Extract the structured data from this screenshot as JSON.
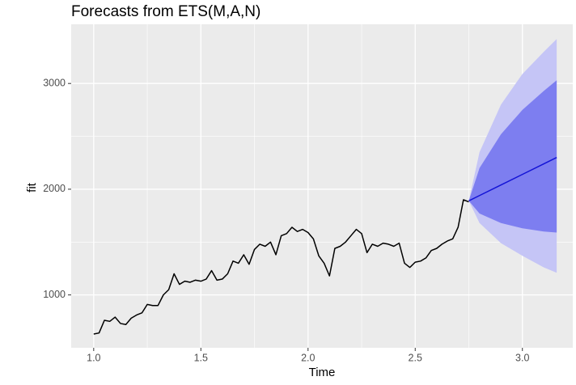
{
  "chart_data": {
    "type": "line",
    "title": "Forecasts from ETS(M,A,N)",
    "x_label": "Time",
    "y_label": "fit",
    "xlim": [
      0.895,
      3.235
    ],
    "ylim": [
      500,
      3560
    ],
    "xticks": [
      {
        "value": 1,
        "label": "1.0"
      },
      1.5,
      {
        "value": 2,
        "label": "2.0"
      },
      2.5,
      {
        "value": 3,
        "label": "3.0"
      }
    ],
    "yticks": [
      1000,
      2000,
      3000
    ],
    "grid": true,
    "minor_grid": true,
    "bands": [
      {
        "color": "#c5c5f6",
        "x": [
          2.75,
          2.8,
          2.9,
          3.0,
          3.1,
          3.16
        ],
        "lower": [
          1890,
          1680,
          1490,
          1370,
          1260,
          1210
        ],
        "upper": [
          1890,
          2350,
          2800,
          3090,
          3300,
          3420
        ]
      },
      {
        "color": "#7d7ef0",
        "x": [
          2.75,
          2.8,
          2.9,
          3.0,
          3.1,
          3.16
        ],
        "lower": [
          1890,
          1770,
          1680,
          1630,
          1600,
          1590
        ],
        "upper": [
          1890,
          2200,
          2520,
          2750,
          2930,
          3030
        ]
      }
    ],
    "series": [
      {
        "color": "#000000",
        "x": [
          1.0,
          1.025,
          1.05,
          1.075,
          1.1,
          1.125,
          1.15,
          1.175,
          1.2,
          1.225,
          1.25,
          1.275,
          1.3,
          1.325,
          1.35,
          1.375,
          1.4,
          1.425,
          1.45,
          1.475,
          1.5,
          1.525,
          1.55,
          1.575,
          1.6,
          1.625,
          1.65,
          1.675,
          1.7,
          1.725,
          1.75,
          1.775,
          1.8,
          1.825,
          1.85,
          1.875,
          1.9,
          1.925,
          1.95,
          1.975,
          2.0,
          2.025,
          2.05,
          2.075,
          2.1,
          2.125,
          2.15,
          2.175,
          2.2,
          2.225,
          2.25,
          2.275,
          2.3,
          2.325,
          2.35,
          2.375,
          2.4,
          2.425,
          2.45,
          2.475,
          2.5,
          2.525,
          2.55,
          2.575,
          2.6,
          2.625,
          2.65,
          2.675,
          2.7,
          2.725,
          2.75
        ],
        "values": [
          630,
          640,
          760,
          750,
          790,
          730,
          720,
          780,
          810,
          830,
          910,
          900,
          900,
          1000,
          1050,
          1200,
          1100,
          1130,
          1120,
          1140,
          1130,
          1150,
          1230,
          1140,
          1150,
          1200,
          1320,
          1300,
          1380,
          1290,
          1430,
          1480,
          1460,
          1500,
          1380,
          1560,
          1580,
          1640,
          1600,
          1620,
          1590,
          1530,
          1370,
          1300,
          1180,
          1440,
          1460,
          1500,
          1560,
          1620,
          1580,
          1400,
          1480,
          1460,
          1490,
          1480,
          1460,
          1490,
          1300,
          1260,
          1310,
          1320,
          1350,
          1420,
          1440,
          1480,
          1510,
          1530,
          1640,
          1900,
          1880
        ]
      },
      {
        "color": "#1414d6",
        "x": [
          2.75,
          2.8,
          2.9,
          3.0,
          3.1,
          3.16
        ],
        "values": [
          1890,
          1940,
          2040,
          2140,
          2240,
          2300
        ]
      }
    ]
  }
}
